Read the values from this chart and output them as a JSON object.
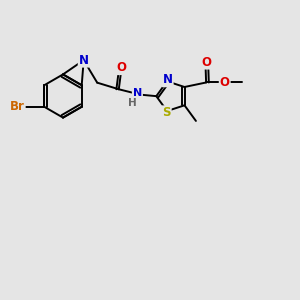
{
  "bg_color": "#e5e5e5",
  "bond_color": "#000000",
  "bond_width": 1.4,
  "atom_colors": {
    "C": "#000000",
    "N": "#0000cc",
    "O": "#dd0000",
    "S": "#aaaa00",
    "Br": "#cc6600",
    "H": "#666666"
  },
  "font_size": 8.5,
  "fig_width": 3.0,
  "fig_height": 3.0,
  "xlim": [
    0,
    10
  ],
  "ylim": [
    0,
    10
  ]
}
